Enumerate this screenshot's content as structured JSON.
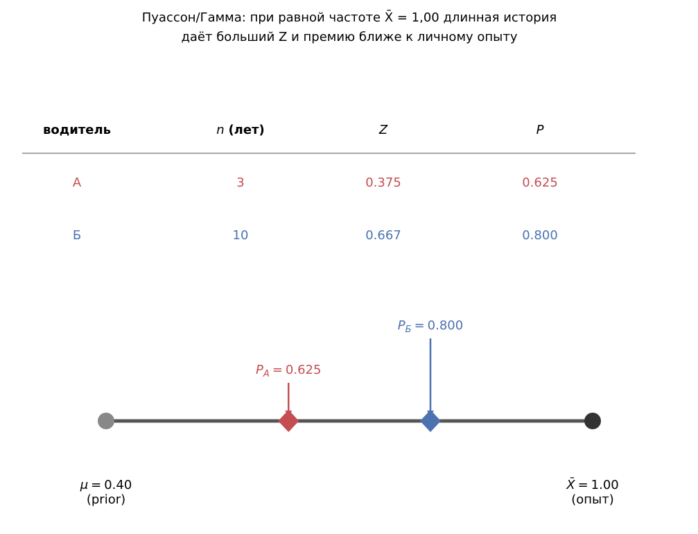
{
  "title": [
    "Пуассон/Гамма: при равной частоте X̄ = 1,00 длинная история",
    "даёт больший Z и премию ближе к личному опыту"
  ],
  "table": {
    "columns": [
      "водитель",
      [
        "n",
        "(лет)"
      ],
      "Z",
      "P"
    ],
    "rows": [
      {
        "cells": [
          "А",
          "3",
          "0.375",
          "0.625"
        ],
        "color": "#c44e52"
      },
      {
        "cells": [
          "Б",
          "10",
          "0.667",
          "0.800"
        ],
        "color": "#4c72b0"
      }
    ]
  },
  "chart_data": {
    "type": "number-line",
    "xlim": [
      0.4,
      1.0
    ],
    "endpoints": [
      {
        "symbol": "μ",
        "relation": "=",
        "value": 0.4,
        "value_label": "0.40",
        "note": "(prior)",
        "color": "#888888"
      },
      {
        "symbol": "X̄",
        "relation": "=",
        "value": 1.0,
        "value_label": "1.00",
        "note": "(опыт)",
        "color": "#333333"
      }
    ],
    "markers": [
      {
        "symbol": "P",
        "sub": "А",
        "relation": "=",
        "value": 0.625,
        "value_label": "0.625",
        "color": "#c44e52"
      },
      {
        "symbol": "P",
        "sub": "Б",
        "relation": "=",
        "value": 0.8,
        "value_label": "0.800",
        "color": "#4c72b0"
      }
    ]
  }
}
